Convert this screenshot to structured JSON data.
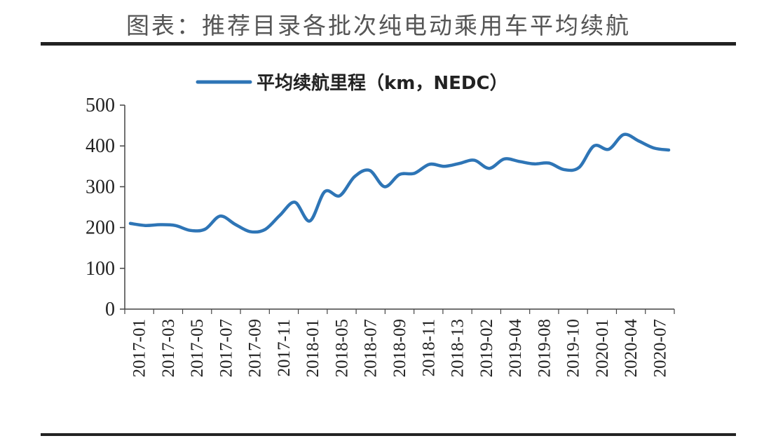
{
  "title": "图表：推荐目录各批次纯电动乘用车平均续航",
  "chart_data": {
    "type": "line",
    "title": "图表：推荐目录各批次纯电动乘用车平均续航",
    "xlabel": "",
    "ylabel": "",
    "ylim": [
      0,
      500
    ],
    "yticks": [
      "0",
      "100",
      "200",
      "300",
      "400",
      "500"
    ],
    "legend_position": "top",
    "grid": false,
    "line_color": "#2e75b6",
    "x_tick_labels": [
      "2017-01",
      "2017-03",
      "2017-05",
      "2017-07",
      "2017-09",
      "2017-11",
      "2018-01",
      "2018-05",
      "2018-07",
      "2018-09",
      "2018-11",
      "2018-13",
      "2019-02",
      "2019-04",
      "2019-08",
      "2019-10",
      "2020-01",
      "2020-04",
      "2020-07"
    ],
    "series": [
      {
        "name": "平均续航里程（km，NEDC）",
        "values": [
          210,
          205,
          207,
          205,
          193,
          196,
          228,
          208,
          190,
          195,
          230,
          262,
          216,
          288,
          278,
          325,
          340,
          300,
          330,
          333,
          355,
          350,
          357,
          365,
          345,
          368,
          362,
          356,
          358,
          342,
          347,
          400,
          392,
          428,
          412,
          395,
          390
        ]
      }
    ]
  }
}
